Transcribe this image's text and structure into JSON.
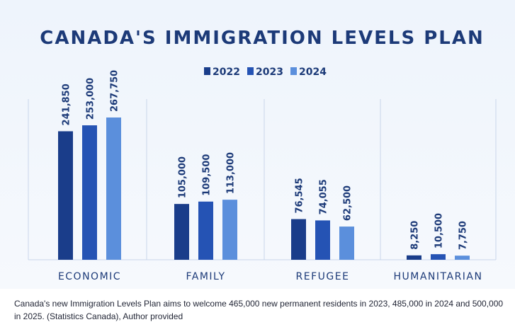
{
  "chart_data": {
    "type": "bar",
    "title": "CANADA'S IMMIGRATION LEVELS PLAN",
    "categories": [
      "ECONOMIC",
      "FAMILY",
      "REFUGEE",
      "HUMANITARIAN"
    ],
    "series": [
      {
        "name": "2022",
        "color": "#1a3d8a",
        "values": [
          241850,
          105000,
          76545,
          8250
        ],
        "labels": [
          "241,850",
          "105,000",
          "76,545",
          "8,250"
        ]
      },
      {
        "name": "2023",
        "color": "#2553b4",
        "values": [
          253000,
          109500,
          74055,
          10500
        ],
        "labels": [
          "253,000",
          "109,500",
          "74,055",
          "10,500"
        ]
      },
      {
        "name": "2024",
        "color": "#5b8fdc",
        "values": [
          267750,
          113000,
          62500,
          7750
        ],
        "labels": [
          "267,750",
          "113,000",
          "62,500",
          "7,750"
        ]
      }
    ],
    "ylim": [
      0,
      267750
    ],
    "grid": "vertical separators between categories",
    "legend_position": "top-center",
    "colors": {
      "title": "#1c3a78",
      "text": "#1c3a78",
      "separator": "#c9d6ea"
    }
  },
  "caption": "Canada's new Immigration Levels Plan aims to welcome 465,000 new permanent residents in 2023, 485,000 in 2024 and 500,000 in 2025. (Statistics Canada), Author provided"
}
